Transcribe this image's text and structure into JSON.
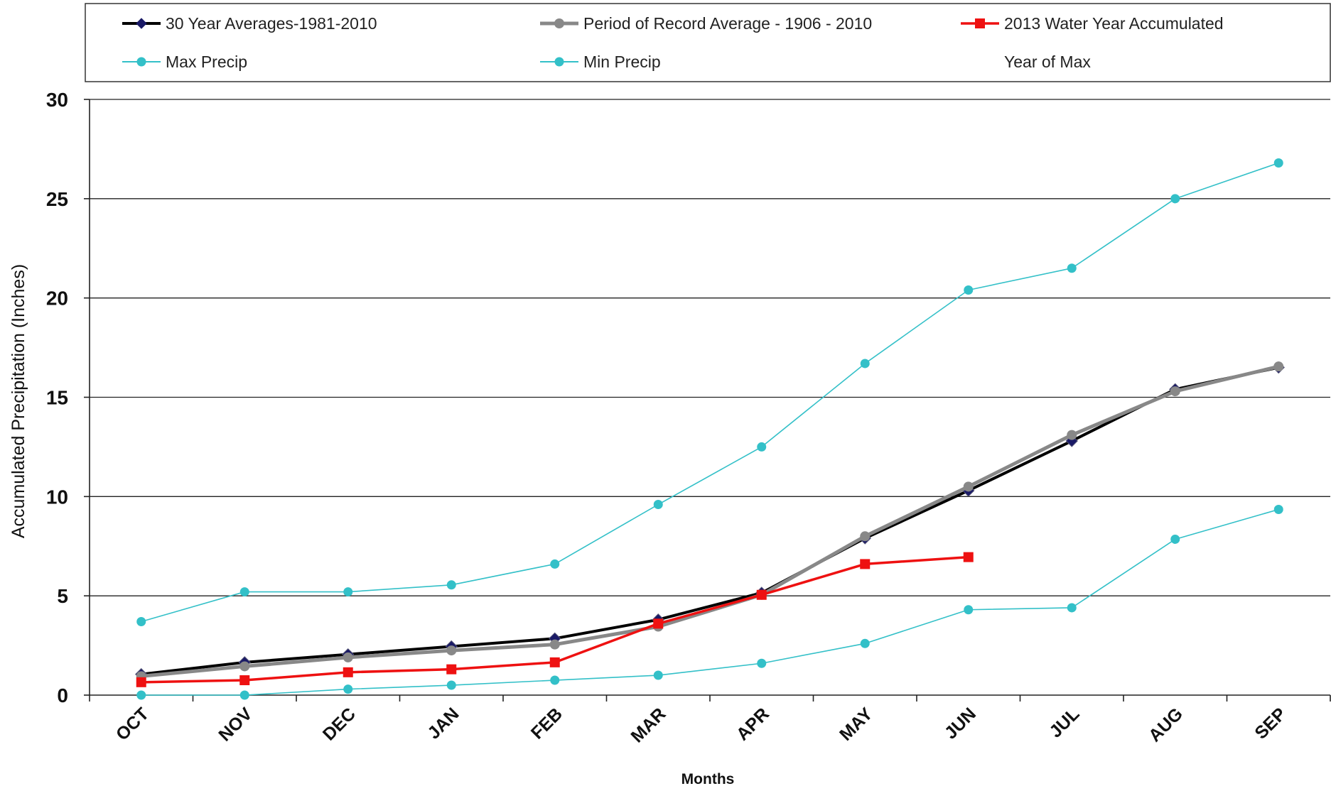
{
  "chart_data": {
    "type": "line",
    "title": "",
    "xlabel": "Months",
    "ylabel": "Accumulated  Precipitation  (Inches)",
    "categories": [
      "OCT",
      "NOV",
      "DEC",
      "JAN",
      "FEB",
      "MAR",
      "APR",
      "MAY",
      "JUN",
      "JUL",
      "AUG",
      "SEP"
    ],
    "ylim": [
      0,
      30
    ],
    "yticks": [
      "0",
      "5",
      "10",
      "15",
      "20",
      "25",
      "30"
    ],
    "grid": true,
    "legend_position": "top",
    "series": [
      {
        "name": "30 Year Averages-1981-2010",
        "color": "#000000",
        "marker": "diamond",
        "marker_color": "#1a1a66",
        "values": [
          1.05,
          1.65,
          2.05,
          2.45,
          2.85,
          3.8,
          5.15,
          7.9,
          10.3,
          12.8,
          15.4,
          16.5
        ]
      },
      {
        "name": "Period of Record Average - 1906 - 2010",
        "color": "#888888",
        "marker": "circle",
        "marker_color": "#888888",
        "values": [
          0.95,
          1.45,
          1.9,
          2.25,
          2.55,
          3.45,
          5.05,
          8.0,
          10.5,
          13.1,
          15.3,
          16.55
        ]
      },
      {
        "name": "2013 Water Year Accumulated",
        "color": "#ee1111",
        "marker": "square",
        "marker_color": "#ee1111",
        "values": [
          0.65,
          0.75,
          1.15,
          1.3,
          1.65,
          3.6,
          5.05,
          6.6,
          6.95,
          null,
          null,
          null
        ]
      },
      {
        "name": "Max Precip",
        "color": "#33c0c8",
        "marker": "circle",
        "marker_color": "#33c0c8",
        "values": [
          3.7,
          5.2,
          5.2,
          5.55,
          6.6,
          9.6,
          12.5,
          16.7,
          20.4,
          21.5,
          25.0,
          26.8
        ]
      },
      {
        "name": "Min Precip",
        "color": "#33c0c8",
        "marker": "circle",
        "marker_color": "#33c0c8",
        "values": [
          0.0,
          0.0,
          0.3,
          0.5,
          0.75,
          1.0,
          1.6,
          2.6,
          4.3,
          4.4,
          7.85,
          9.35
        ]
      }
    ],
    "legend_extra": "Year of Max"
  }
}
